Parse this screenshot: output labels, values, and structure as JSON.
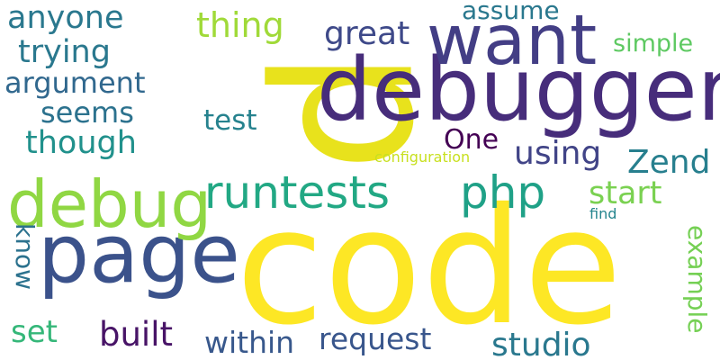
{
  "words": [
    {
      "text": "code",
      "color": "#fde725"
    },
    {
      "text": "p",
      "color": "#e8e21c"
    },
    {
      "text": "debugger",
      "color": "#472d7b"
    },
    {
      "text": "want",
      "color": "#433e85"
    },
    {
      "text": "page",
      "color": "#3b528b"
    },
    {
      "text": "debug",
      "color": "#90d743"
    },
    {
      "text": "runtests",
      "color": "#22a884"
    },
    {
      "text": "php",
      "color": "#1fa187"
    },
    {
      "text": "anyone",
      "color": "#2a788e"
    },
    {
      "text": "thing",
      "color": "#a0da39"
    },
    {
      "text": "assume",
      "color": "#2a788e"
    },
    {
      "text": "trying",
      "color": "#2a788e"
    },
    {
      "text": "great",
      "color": "#3e4989"
    },
    {
      "text": "simple",
      "color": "#5ec962"
    },
    {
      "text": "argument",
      "color": "#31688e"
    },
    {
      "text": "seems",
      "color": "#2c728e"
    },
    {
      "text": "test",
      "color": "#26828e"
    },
    {
      "text": "though",
      "color": "#21918c"
    },
    {
      "text": "One",
      "color": "#440154"
    },
    {
      "text": "using",
      "color": "#414487"
    },
    {
      "text": "Zend",
      "color": "#277f8e"
    },
    {
      "text": "configuration",
      "color": "#c8e020"
    },
    {
      "text": "start",
      "color": "#7ad151"
    },
    {
      "text": "find",
      "color": "#25858e"
    },
    {
      "text": "know",
      "color": "#2c728e"
    },
    {
      "text": "example",
      "color": "#75d054"
    },
    {
      "text": "set",
      "color": "#35b779"
    },
    {
      "text": "built",
      "color": "#481467"
    },
    {
      "text": "within",
      "color": "#38588c"
    },
    {
      "text": "request",
      "color": "#39568c"
    },
    {
      "text": "studio",
      "color": "#2a788e"
    }
  ]
}
